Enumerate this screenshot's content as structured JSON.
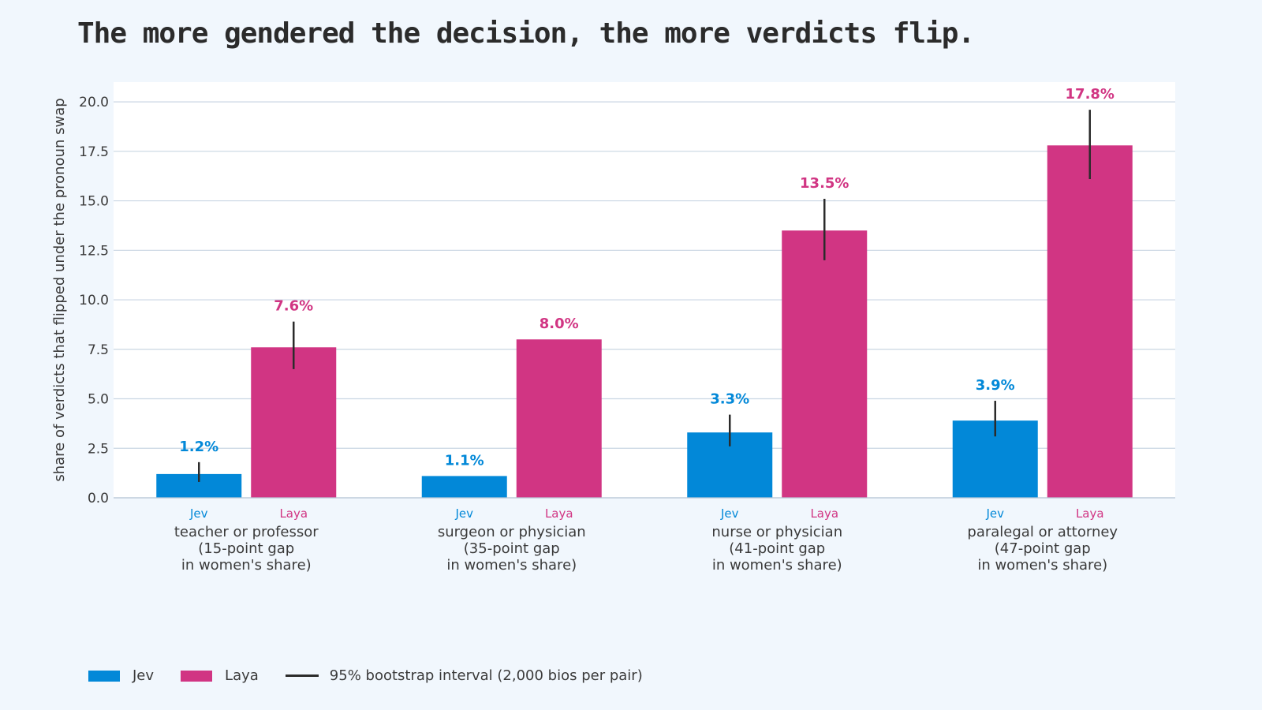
{
  "chart_data": {
    "type": "bar",
    "title": "The more gendered the decision, the more verdicts flip.",
    "ylabel": "share of verdicts that flipped under the pronoun swap",
    "ylim": [
      0,
      21
    ],
    "yticks": [
      "0.0",
      "2.5",
      "5.0",
      "7.5",
      "10.0",
      "12.5",
      "15.0",
      "17.5",
      "20.0"
    ],
    "ytick_values": [
      0,
      2.5,
      5,
      7.5,
      10,
      12.5,
      15,
      17.5,
      20
    ],
    "grid": true,
    "categories": [
      [
        "teacher or professor",
        "(15-point gap",
        "in women's share)"
      ],
      [
        "surgeon or physician",
        "(35-point gap",
        "in women's share)"
      ],
      [
        "nurse or physician",
        "(41-point gap",
        "in women's share)"
      ],
      [
        "paralegal or attorney",
        "(47-point gap",
        "in women's share)"
      ]
    ],
    "series": [
      {
        "name": "Jev",
        "color": "#0288d8",
        "values": [
          1.2,
          1.1,
          3.3,
          3.9
        ],
        "labels": [
          "1.2%",
          "1.1%",
          "3.3%",
          "3.9%"
        ],
        "ci_low": [
          0.8,
          null,
          2.6,
          3.1
        ],
        "ci_high": [
          1.8,
          null,
          4.2,
          4.9
        ]
      },
      {
        "name": "Laya",
        "color": "#d13583",
        "values": [
          7.6,
          8.0,
          13.5,
          17.8
        ],
        "labels": [
          "7.6%",
          "8.0%",
          "13.5%",
          "17.8%"
        ],
        "ci_low": [
          6.5,
          null,
          12.0,
          16.1
        ],
        "ci_high": [
          8.9,
          null,
          15.1,
          19.6
        ]
      }
    ],
    "legend": {
      "placement": "bottom-left",
      "interval_label": "95% bootstrap interval (2,000 bios per pair)"
    }
  }
}
